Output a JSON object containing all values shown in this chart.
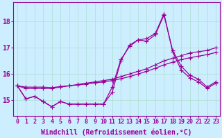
{
  "xlabel": "Windchill (Refroidissement éolien,°C)",
  "bg_color": "#cceeff",
  "grid_color": "#aaddcc",
  "line_color": "#990099",
  "xlim": [
    -0.5,
    23.5
  ],
  "ylim": [
    14.4,
    18.75
  ],
  "yticks": [
    15,
    16,
    17,
    18
  ],
  "xticks": [
    0,
    1,
    2,
    3,
    4,
    5,
    6,
    7,
    8,
    9,
    10,
    11,
    12,
    13,
    14,
    15,
    16,
    17,
    18,
    19,
    20,
    21,
    22,
    23
  ],
  "lines": [
    [
      15.55,
      15.05,
      15.15,
      14.95,
      14.75,
      14.95,
      14.85,
      14.85,
      14.85,
      14.85,
      14.85,
      15.3,
      16.5,
      17.1,
      17.3,
      17.35,
      17.55,
      18.3,
      16.85,
      16.15,
      15.85,
      15.7,
      15.45,
      15.65
    ],
    [
      15.55,
      15.05,
      15.15,
      14.95,
      14.75,
      14.95,
      14.85,
      14.85,
      14.85,
      14.85,
      14.85,
      15.5,
      16.55,
      17.05,
      17.3,
      17.25,
      17.5,
      18.25,
      16.9,
      16.3,
      15.95,
      15.8,
      15.5,
      15.7
    ],
    [
      15.55,
      15.45,
      15.45,
      15.45,
      15.45,
      15.5,
      15.55,
      15.6,
      15.65,
      15.7,
      15.75,
      15.8,
      15.9,
      16.0,
      16.1,
      16.2,
      16.35,
      16.5,
      16.6,
      16.7,
      16.8,
      16.85,
      16.9,
      17.0
    ],
    [
      15.55,
      15.5,
      15.5,
      15.5,
      15.48,
      15.52,
      15.55,
      15.58,
      15.62,
      15.66,
      15.7,
      15.75,
      15.82,
      15.9,
      16.0,
      16.1,
      16.22,
      16.35,
      16.45,
      16.55,
      16.62,
      16.68,
      16.74,
      16.82
    ]
  ],
  "marker": "+",
  "markersize": 4,
  "linewidth": 0.9,
  "tick_fontsize": 6,
  "label_fontsize": 7
}
